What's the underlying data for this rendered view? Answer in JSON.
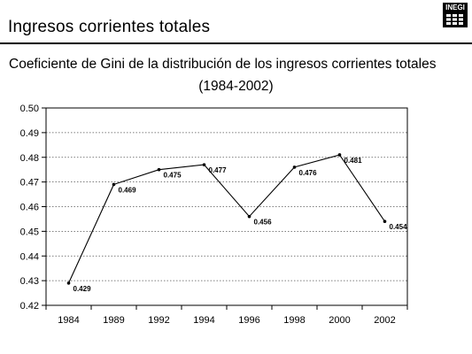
{
  "header": {
    "section_title": "Ingresos corrientes totales",
    "logo_text": "INEGI"
  },
  "chart_data": {
    "type": "line",
    "title": "Coeficiente de Gini de la distribución de los ingresos corrientes totales",
    "subtitle": "(1984-2002)",
    "xlabel": "",
    "ylabel": "",
    "categories": [
      "1984",
      "1989",
      "1992",
      "1994",
      "1996",
      "1998",
      "2000",
      "2002"
    ],
    "series": [
      {
        "values": [
          0.429,
          0.469,
          0.475,
          0.477,
          0.456,
          0.476,
          0.481,
          0.454
        ]
      }
    ],
    "data_labels": [
      "0.429",
      "0.469",
      "0.475",
      "0.477",
      "0.456",
      "0.476",
      "0.481",
      "0.454"
    ],
    "ylim": [
      0.42,
      0.5
    ],
    "yticks": [
      "0.42",
      "0.43",
      "0.44",
      "0.45",
      "0.46",
      "0.47",
      "0.48",
      "0.49",
      "0.50"
    ],
    "grid": "horizontal dotted",
    "legend": "none",
    "colors": {
      "line": "#000000",
      "grid": "#555555",
      "frame": "#000000"
    }
  }
}
